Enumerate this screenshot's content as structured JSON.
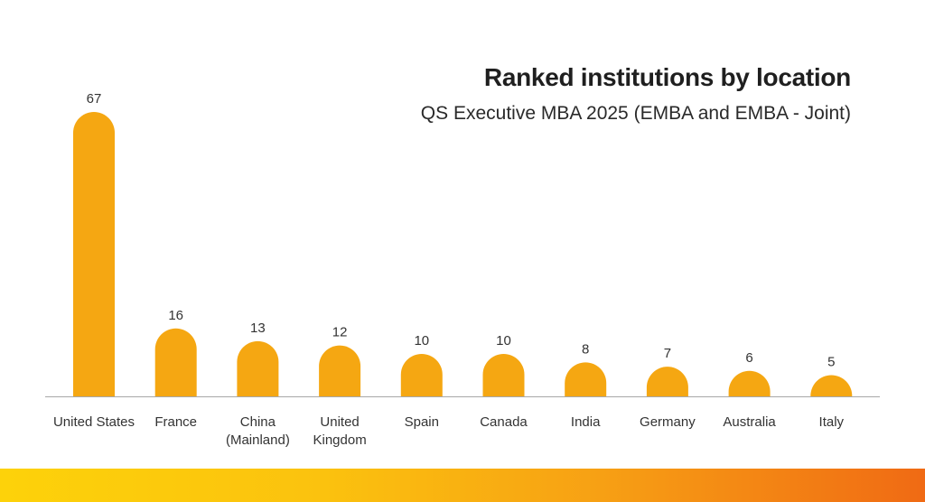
{
  "chart_data": {
    "type": "bar",
    "title": "Ranked institutions by location",
    "subtitle": "QS Executive MBA 2025 (EMBA and EMBA - Joint)",
    "categories": [
      [
        "United States"
      ],
      [
        "France"
      ],
      [
        "China",
        "(Mainland)"
      ],
      [
        "United",
        "Kingdom"
      ],
      [
        "Spain"
      ],
      [
        "Canada"
      ],
      [
        "India"
      ],
      [
        "Germany"
      ],
      [
        "Australia"
      ],
      [
        "Italy"
      ]
    ],
    "values": [
      67,
      16,
      13,
      12,
      10,
      10,
      8,
      7,
      6,
      5
    ],
    "xlabel": "",
    "ylabel": "",
    "ylim": [
      0,
      70
    ],
    "grid": false,
    "legend": "none",
    "colors": {
      "bar": "#f5a712",
      "axis": "#a8a8a8",
      "text": "#333333"
    }
  }
}
